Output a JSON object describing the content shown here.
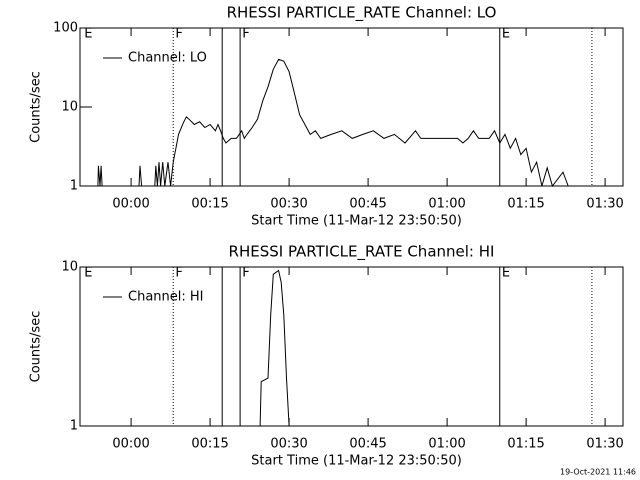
{
  "chart_data": [
    {
      "type": "line",
      "title": "RHESSI PARTICLE_RATE Channel: LO",
      "x_label": "Start Time (11-Mar-12 23:50:50)",
      "y_label": "Counts/sec",
      "log_y": true,
      "xlim": [
        -9.7,
        93.4
      ],
      "ylim": [
        1,
        100
      ],
      "xticks": [
        {
          "value": 0,
          "label": "00:00"
        },
        {
          "value": 15,
          "label": "00:15"
        },
        {
          "value": 30,
          "label": "00:30"
        },
        {
          "value": 45,
          "label": "00:45"
        },
        {
          "value": 60,
          "label": "01:00"
        },
        {
          "value": 75,
          "label": "01:15"
        },
        {
          "value": 90,
          "label": "01:30"
        }
      ],
      "yticks": [
        1,
        10,
        100
      ],
      "vlines": [
        {
          "x": 8,
          "style": "dotted"
        },
        {
          "x": 17.3,
          "style": "solid"
        },
        {
          "x": 20.7,
          "style": "solid"
        },
        {
          "x": 70,
          "style": "solid"
        },
        {
          "x": 87.5,
          "style": "dotted"
        }
      ],
      "annotations": [
        {
          "text": "E",
          "x": -8.9
        },
        {
          "text": "F",
          "x": 8.4
        },
        {
          "text": "F",
          "x": 21.1
        },
        {
          "text": "E",
          "x": 70.4
        }
      ],
      "series": [
        {
          "name": "Channel: LO",
          "color": "#000000",
          "x": [
            -9.5,
            -6.3,
            -6.2,
            -5.9,
            -5.7,
            -5.5,
            1.5,
            1.7,
            2,
            4.5,
            4.7,
            5,
            5.3,
            5.6,
            6,
            6.4,
            7,
            7.5,
            8,
            8.5,
            9,
            10,
            10.5,
            11,
            12,
            13,
            14,
            15,
            16,
            16.5,
            17,
            17.5,
            18,
            19,
            20,
            21,
            21.5,
            22,
            23,
            24,
            25,
            26,
            27,
            28,
            29,
            30,
            31,
            32,
            33,
            34,
            35,
            36,
            38,
            40,
            42,
            44,
            46,
            48,
            50,
            52,
            54,
            55,
            56,
            58,
            60,
            62,
            63,
            64,
            65,
            66,
            67,
            68,
            69,
            70,
            71,
            72,
            73,
            74,
            75,
            76,
            77,
            78,
            79,
            80,
            82,
            83,
            86
          ],
          "values": [
            1,
            1,
            1.8,
            1,
            1.8,
            1,
            1,
            1.8,
            1,
            1,
            1.8,
            1,
            2,
            1,
            2,
            1,
            2,
            1,
            2,
            3,
            4.5,
            6.5,
            7.5,
            7,
            6,
            6.5,
            5.5,
            6,
            5,
            6,
            5,
            4,
            3.5,
            4,
            4,
            5,
            4,
            4.5,
            5.5,
            7,
            12,
            18,
            30,
            40,
            38,
            28,
            15,
            8,
            6,
            4.5,
            5,
            4,
            4.5,
            5,
            4,
            4.5,
            5,
            4,
            4.5,
            3.5,
            5,
            4,
            4,
            4,
            4,
            4,
            3.5,
            4,
            5,
            4,
            4,
            4,
            5,
            3.5,
            4.5,
            3,
            4,
            2.5,
            3,
            1.5,
            2,
            1,
            1.7,
            1,
            1.5,
            1,
            1
          ]
        }
      ]
    },
    {
      "type": "line",
      "title": "RHESSI PARTICLE_RATE Channel: HI",
      "x_label": "Start Time (11-Mar-12 23:50:50)",
      "y_label": "Counts/sec",
      "log_y": true,
      "xlim": [
        -9.7,
        93.4
      ],
      "ylim": [
        1,
        10
      ],
      "xticks": [
        {
          "value": 0,
          "label": "00:00"
        },
        {
          "value": 15,
          "label": "00:15"
        },
        {
          "value": 30,
          "label": "00:30"
        },
        {
          "value": 45,
          "label": "00:45"
        },
        {
          "value": 60,
          "label": "01:00"
        },
        {
          "value": 75,
          "label": "01:15"
        },
        {
          "value": 90,
          "label": "01:30"
        }
      ],
      "yticks": [
        1,
        10
      ],
      "vlines": [
        {
          "x": 8,
          "style": "dotted"
        },
        {
          "x": 17.3,
          "style": "solid"
        },
        {
          "x": 20.7,
          "style": "solid"
        },
        {
          "x": 70,
          "style": "solid"
        },
        {
          "x": 87.5,
          "style": "dotted"
        }
      ],
      "annotations": [
        {
          "text": "E",
          "x": -8.9
        },
        {
          "text": "F",
          "x": 8.4
        },
        {
          "text": "F",
          "x": 21.1
        },
        {
          "text": "E",
          "x": 70.4
        }
      ],
      "series": [
        {
          "name": "Channel: HI",
          "color": "#000000",
          "x": [
            -9.5,
            24.5,
            24.7,
            26,
            26.5,
            27,
            28,
            28.5,
            29,
            29.5,
            30,
            86
          ],
          "values": [
            1,
            1,
            1.9,
            2,
            5,
            9,
            9.5,
            8,
            5,
            2,
            1,
            1
          ]
        }
      ]
    }
  ],
  "footer": "19-Oct-2021 11:46"
}
